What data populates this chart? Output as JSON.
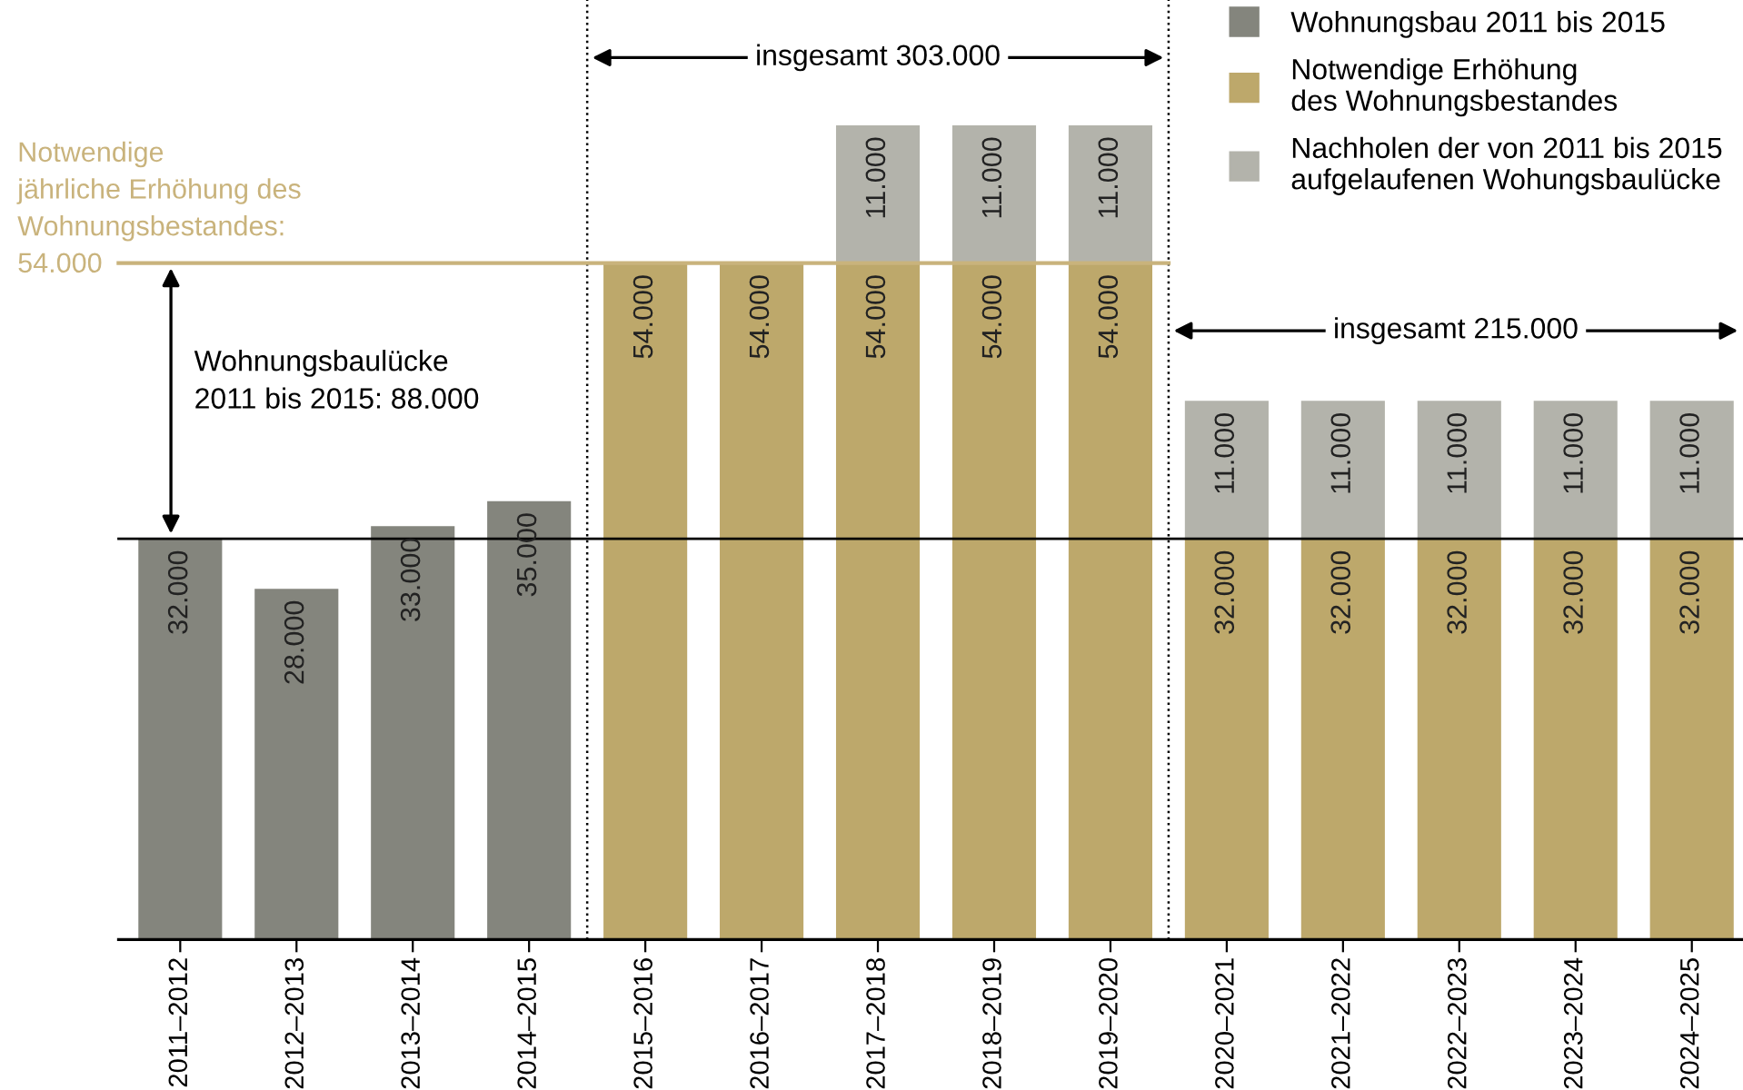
{
  "chart_data": {
    "type": "bar",
    "stacked": true,
    "tick_labels": "x",
    "ylim": [
      0,
      75000
    ],
    "legend": "top right",
    "grid": false,
    "categories": [
      "2011–2012",
      "2012–2013",
      "2013–2014",
      "2014–2015",
      "2015–2016",
      "2016–2017",
      "2017–2018",
      "2018–2019",
      "2019–2020",
      "2020–2021",
      "2021–2022",
      "2022–2023",
      "2023–2024",
      "2024–2025"
    ],
    "series": [
      {
        "name": "Wohnungsbau 2011 bis 2015",
        "color": "#84857d",
        "values": [
          32000,
          28000,
          33000,
          35000,
          null,
          null,
          null,
          null,
          null,
          null,
          null,
          null,
          null,
          null
        ],
        "value_labels": [
          "32.000",
          "28.000",
          "33.000",
          "35.000",
          null,
          null,
          null,
          null,
          null,
          null,
          null,
          null,
          null,
          null
        ]
      },
      {
        "name": "Notwendige Erhöhung\ndes Wohnungsbestandes",
        "color": "#bda86b",
        "values": [
          null,
          null,
          null,
          null,
          54000,
          54000,
          54000,
          54000,
          54000,
          32000,
          32000,
          32000,
          32000,
          32000
        ],
        "value_labels": [
          null,
          null,
          null,
          null,
          "54.000",
          "54.000",
          "54.000",
          "54.000",
          "54.000",
          "32.000",
          "32.000",
          "32.000",
          "32.000",
          "32.000"
        ]
      },
      {
        "name": "Nachholen der von 2011 bis 2015\naufgelaufenen Wohungsbaulücke",
        "color": "#b3b3ab",
        "values": [
          null,
          null,
          null,
          null,
          null,
          null,
          11000,
          11000,
          11000,
          11000,
          11000,
          11000,
          11000,
          11000
        ],
        "value_labels": [
          null,
          null,
          null,
          null,
          null,
          null,
          "11.000",
          "11.000",
          "11.000",
          "11.000",
          "11.000",
          "11.000",
          "11.000",
          "11.000"
        ]
      }
    ],
    "ref_lines": [
      {
        "axis": "y",
        "value": 54000,
        "label": "Notwendige\njährliche Erhöhung des\nWohnungsbestandes:\n54.000",
        "color": "#c9b37c",
        "line_style": "solid"
      },
      {
        "axis": "y",
        "value": 32000,
        "label": null,
        "color": "#000000",
        "line_style": "solid"
      }
    ],
    "annotations": [
      "insgesamt 303.000",
      "insgesamt 215.000",
      "Wohnungsbaulücke\n2011 bis 2015: 88.000"
    ]
  }
}
